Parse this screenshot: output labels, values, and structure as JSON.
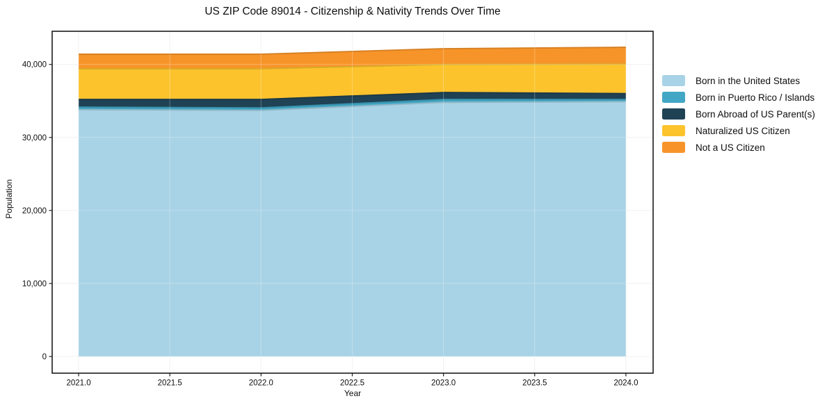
{
  "title": "US ZIP Code 89014 - Citizenship & Nativity Trends Over Time",
  "colors": {
    "background": "#ffffff",
    "frame": "#1c1c1c",
    "grid_under": "#ededed",
    "grid_over": "rgba(255,255,255,0.28)",
    "text": "#0d0d0d"
  },
  "chart_data": {
    "type": "area",
    "stacked": true,
    "title": "US ZIP Code 89014 - Citizenship & Nativity Trends Over Time",
    "xlabel": "Year",
    "ylabel": "Population",
    "x": [
      2021,
      2022,
      2023,
      2024
    ],
    "series": [
      {
        "name": "Born in the United States",
        "color": "#a8d3e6",
        "values": [
          33800,
          33700,
          34800,
          34900
        ]
      },
      {
        "name": "Born in Puerto Rico / Islands",
        "color": "#41a7c4",
        "values": [
          350,
          350,
          400,
          300
        ]
      },
      {
        "name": "Born Abroad of US Parent(s)",
        "color": "#1f4254",
        "values": [
          1050,
          1150,
          950,
          800
        ]
      },
      {
        "name": "Naturalized US Citizen",
        "color": "#fcc32d",
        "values": [
          4200,
          4200,
          3850,
          4050
        ]
      },
      {
        "name": "Not a US Citizen",
        "color": "#f79429",
        "values": [
          2000,
          2000,
          2150,
          2300
        ]
      }
    ],
    "totals": [
      41400,
      41400,
      42150,
      42350
    ],
    "x_ticks": [
      2021.0,
      2021.5,
      2022.0,
      2022.5,
      2023.0,
      2023.5,
      2024.0
    ],
    "x_tick_labels": [
      "2021.0",
      "2021.5",
      "2022.0",
      "2022.5",
      "2023.0",
      "2023.5",
      "2024.0"
    ],
    "y_ticks": [
      0,
      10000,
      20000,
      30000,
      40000
    ],
    "y_tick_labels": [
      "0",
      "10,000",
      "20,000",
      "30,000",
      "40,000"
    ],
    "xlim": [
      2020.855,
      2024.149
    ],
    "ylim": [
      -2284,
      44540
    ],
    "grid": true,
    "legend_position": "right-outside"
  }
}
